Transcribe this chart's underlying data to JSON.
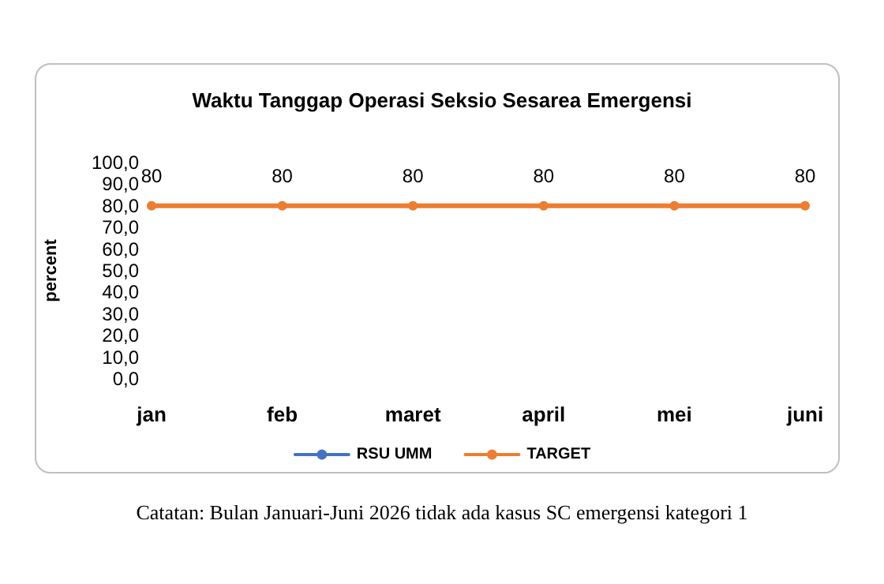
{
  "chart_data": {
    "type": "line",
    "title": "Waktu Tanggap Operasi Seksio Sesarea Emergensi",
    "ylabel": "percent",
    "categories": [
      "jan",
      "feb",
      "maret",
      "april",
      "mei",
      "juni"
    ],
    "series": [
      {
        "name": "RSU UMM",
        "color": "#4472c4",
        "values": [
          null,
          null,
          null,
          null,
          null,
          null
        ]
      },
      {
        "name": "TARGET",
        "color": "#ed7d31",
        "values": [
          80,
          80,
          80,
          80,
          80,
          80
        ]
      }
    ],
    "ylim": [
      0,
      100
    ],
    "yticks": [
      {
        "value": 0,
        "label": "0,0"
      },
      {
        "value": 10,
        "label": "10,0"
      },
      {
        "value": 20,
        "label": "20,0"
      },
      {
        "value": 30,
        "label": "30,0"
      },
      {
        "value": 40,
        "label": "40,0"
      },
      {
        "value": 50,
        "label": "50,0"
      },
      {
        "value": 60,
        "label": "60,0"
      },
      {
        "value": 70,
        "label": "70,0"
      },
      {
        "value": 80,
        "label": "80,0"
      },
      {
        "value": 90,
        "label": "90,0"
      },
      {
        "value": 100,
        "label": "100,0"
      }
    ],
    "grid": false,
    "legend": "bottom",
    "marker": "circle",
    "line_style": "solid",
    "data_labels": true,
    "annotations": [
      "Catatan: Bulan Januari-Juni 2026 tidak ada kasus SC emergensi kategori 1"
    ]
  }
}
